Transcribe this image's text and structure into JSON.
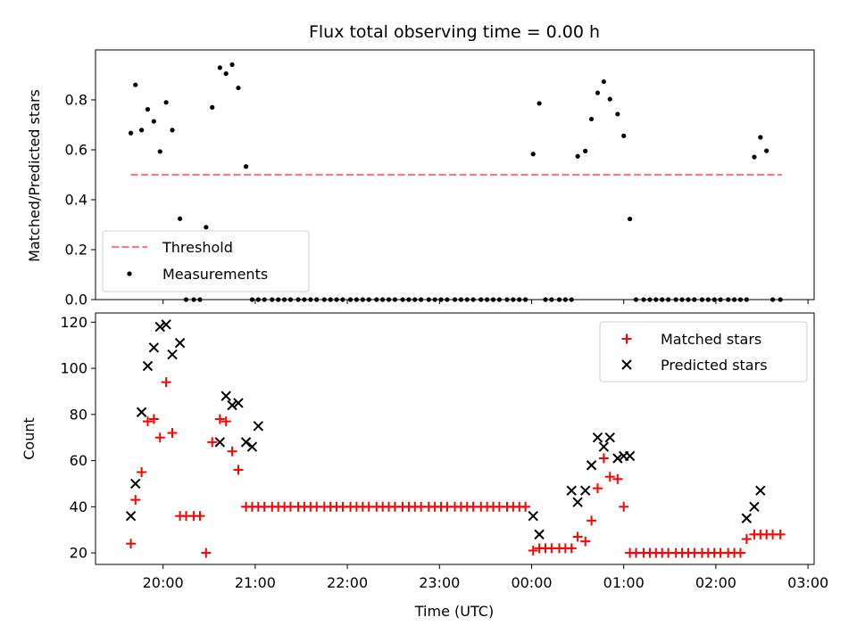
{
  "chart_data": [
    {
      "type": "scatter",
      "title": "Flux total observing time = 0.00 h",
      "ylabel": "Matched/Predicted stars",
      "xlabel": "",
      "ylim": [
        0,
        1.0
      ],
      "yticks": [
        0.0,
        0.2,
        0.4,
        0.6,
        0.8
      ],
      "ytick_labels": [
        "0.0",
        "0.2",
        "0.4",
        "0.6",
        "0.8"
      ],
      "grid": false,
      "legend_position": "lower-left",
      "threshold": {
        "name": "Threshold",
        "value": 0.5,
        "x_start": "19:39",
        "x_end": "02:43",
        "color": "#f08080"
      },
      "series": [
        {
          "name": "Measurements",
          "color": "#000000",
          "x": [
            "19:39",
            "19:42",
            "19:46",
            "19:50",
            "19:54",
            "19:58",
            "20:02",
            "20:06",
            "20:11",
            "20:15",
            "20:20",
            "20:24",
            "20:28",
            "20:32",
            "20:37",
            "20:41",
            "20:45",
            "20:49",
            "20:54",
            "20:58",
            "21:02",
            "21:06",
            "21:11",
            "21:15",
            "21:19",
            "21:23",
            "21:28",
            "21:32",
            "21:36",
            "21:40",
            "21:45",
            "21:49",
            "21:53",
            "21:57",
            "22:02",
            "22:06",
            "22:10",
            "22:14",
            "22:19",
            "22:23",
            "22:27",
            "22:31",
            "22:36",
            "22:40",
            "22:44",
            "22:48",
            "22:53",
            "22:57",
            "23:01",
            "23:05",
            "23:10",
            "23:14",
            "23:18",
            "23:22",
            "23:27",
            "23:31",
            "23:35",
            "23:39",
            "23:44",
            "23:48",
            "23:52",
            "23:56",
            "00:01",
            "00:05",
            "00:09",
            "00:13",
            "00:18",
            "00:22",
            "00:26",
            "00:30",
            "00:35",
            "00:39",
            "00:43",
            "00:47",
            "00:51",
            "00:56",
            "01:00",
            "01:04",
            "01:08",
            "01:13",
            "01:17",
            "01:21",
            "01:25",
            "01:29",
            "01:34",
            "01:38",
            "01:42",
            "01:46",
            "01:51",
            "01:55",
            "01:59",
            "02:03",
            "02:08",
            "02:12",
            "02:16",
            "02:20",
            "02:25",
            "02:29",
            "02:33",
            "02:37",
            "02:42"
          ],
          "y": [
            0.667,
            0.86,
            0.679,
            0.762,
            0.714,
            0.593,
            0.79,
            0.679,
            0.324,
            0.0,
            0.0,
            0.0,
            0.29,
            0.77,
            0.929,
            0.905,
            0.941,
            0.848,
            0.533,
            0.0,
            0.0,
            0.0,
            0.0,
            0.0,
            0.0,
            0.0,
            0.0,
            0.0,
            0.0,
            0.0,
            0.0,
            0.0,
            0.0,
            0.0,
            0.0,
            0.0,
            0.0,
            0.0,
            0.0,
            0.0,
            0.0,
            0.0,
            0.0,
            0.0,
            0.0,
            0.0,
            0.0,
            0.0,
            0.0,
            0.0,
            0.0,
            0.0,
            0.0,
            0.0,
            0.0,
            0.0,
            0.0,
            0.0,
            0.0,
            0.0,
            0.0,
            0.0,
            0.583,
            0.786,
            0.0,
            0.0,
            0.0,
            0.0,
            0.0,
            0.574,
            0.595,
            0.723,
            0.828,
            0.873,
            0.803,
            0.743,
            0.656,
            0.323,
            0.0,
            0.0,
            0.0,
            0.0,
            0.0,
            0.0,
            0.0,
            0.0,
            0.0,
            0.0,
            0.0,
            0.0,
            0.0,
            0.0,
            0.0,
            0.0,
            0.0,
            0.0,
            0.571,
            0.65,
            0.596,
            0.0,
            0.0
          ]
        }
      ]
    },
    {
      "type": "scatter",
      "title": "",
      "xlabel": "Time (UTC)",
      "ylabel": "Count",
      "xlim": [
        "19:16",
        "03:04"
      ],
      "ylim": [
        15,
        124
      ],
      "xticks": [
        "20:00",
        "21:00",
        "22:00",
        "23:00",
        "00:00",
        "01:00",
        "02:00",
        "03:00"
      ],
      "yticks": [
        20,
        40,
        60,
        80,
        100,
        120
      ],
      "ytick_labels": [
        "20",
        "40",
        "60",
        "80",
        "100",
        "120"
      ],
      "grid": false,
      "legend_position": "upper-right",
      "series": [
        {
          "name": "Matched stars",
          "marker": "+",
          "color": "#ff0000",
          "x": [
            "19:39",
            "19:42",
            "19:46",
            "19:50",
            "19:54",
            "19:58",
            "20:02",
            "20:06",
            "20:11",
            "20:15",
            "20:20",
            "20:24",
            "20:28",
            "20:32",
            "20:37",
            "20:41",
            "20:45",
            "20:49",
            "20:54",
            "20:58",
            "21:02",
            "21:06",
            "21:11",
            "21:15",
            "21:19",
            "21:23",
            "21:28",
            "21:32",
            "21:36",
            "21:40",
            "21:45",
            "21:49",
            "21:53",
            "21:57",
            "22:02",
            "22:06",
            "22:10",
            "22:14",
            "22:19",
            "22:23",
            "22:27",
            "22:31",
            "22:36",
            "22:40",
            "22:44",
            "22:48",
            "22:53",
            "22:57",
            "23:01",
            "23:05",
            "23:10",
            "23:14",
            "23:18",
            "23:22",
            "23:27",
            "23:31",
            "23:35",
            "23:39",
            "23:44",
            "23:48",
            "23:52",
            "23:56",
            "00:01",
            "00:05",
            "00:09",
            "00:13",
            "00:18",
            "00:22",
            "00:26",
            "00:30",
            "00:35",
            "00:39",
            "00:43",
            "00:47",
            "00:51",
            "00:56",
            "01:00",
            "01:04",
            "01:08",
            "01:13",
            "01:17",
            "01:21",
            "01:25",
            "01:29",
            "01:34",
            "01:38",
            "01:42",
            "01:46",
            "01:51",
            "01:55",
            "01:59",
            "02:03",
            "02:08",
            "02:12",
            "02:16",
            "02:20",
            "02:25",
            "02:29",
            "02:33",
            "02:37",
            "02:42"
          ],
          "y": [
            24,
            43,
            55,
            77,
            78,
            70,
            94,
            72,
            36,
            36,
            36,
            36,
            20,
            68,
            78,
            77,
            64,
            56,
            40,
            40,
            40,
            40,
            40,
            40,
            40,
            40,
            40,
            40,
            40,
            40,
            40,
            40,
            40,
            40,
            40,
            40,
            40,
            40,
            40,
            40,
            40,
            40,
            40,
            40,
            40,
            40,
            40,
            40,
            40,
            40,
            40,
            40,
            40,
            40,
            40,
            40,
            40,
            40,
            40,
            40,
            40,
            40,
            21,
            22,
            22,
            22,
            22,
            22,
            22,
            27,
            25,
            34,
            48,
            61,
            53,
            52,
            40,
            20,
            20,
            20,
            20,
            20,
            20,
            20,
            20,
            20,
            20,
            20,
            20,
            20,
            20,
            20,
            20,
            20,
            20,
            26,
            28,
            28,
            28,
            28,
            28
          ]
        },
        {
          "name": "Predicted stars",
          "marker": "x",
          "color": "#000000",
          "x": [
            "19:39",
            "19:42",
            "19:46",
            "19:50",
            "19:54",
            "19:58",
            "20:02",
            "20:06",
            "20:11",
            "20:37",
            "20:41",
            "20:45",
            "20:49",
            "20:54",
            "20:58",
            "21:02",
            "00:01",
            "00:05",
            "00:26",
            "00:30",
            "00:35",
            "00:39",
            "00:43",
            "00:47",
            "00:51",
            "00:56",
            "01:00",
            "01:04",
            "02:20",
            "02:25",
            "02:29"
          ],
          "y": [
            36,
            50,
            81,
            101,
            109,
            118,
            119,
            106,
            111,
            68,
            88,
            84,
            85,
            68,
            66,
            75,
            36,
            28,
            47,
            42,
            47,
            58,
            70,
            66,
            70,
            61,
            62,
            62,
            35,
            40,
            47
          ]
        }
      ]
    }
  ]
}
